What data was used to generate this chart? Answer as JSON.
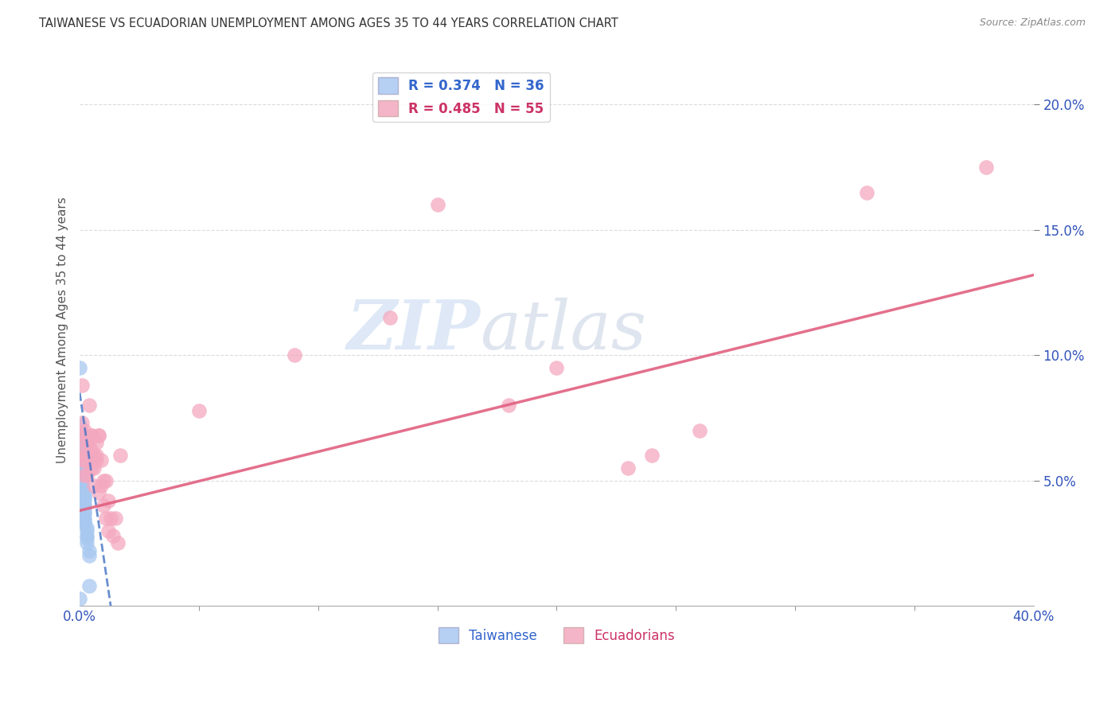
{
  "title": "TAIWANESE VS ECUADORIAN UNEMPLOYMENT AMONG AGES 35 TO 44 YEARS CORRELATION CHART",
  "source": "Source: ZipAtlas.com",
  "ylabel": "Unemployment Among Ages 35 to 44 years",
  "xlim": [
    0,
    0.4
  ],
  "ylim": [
    0,
    0.22
  ],
  "xtick_left_label": "0.0%",
  "xtick_right_label": "40.0%",
  "yticks": [
    0.05,
    0.1,
    0.15,
    0.2
  ],
  "yticklabels": [
    "5.0%",
    "10.0%",
    "15.0%",
    "20.0%"
  ],
  "legend_r_entries": [
    {
      "label_r": "R = 0.374",
      "label_n": "N = 36",
      "color": "#a8c8f0"
    },
    {
      "label_r": "R = 0.485",
      "label_n": "N = 55",
      "color": "#f4a8c0"
    }
  ],
  "taiwanese_color": "#a8c8f0",
  "ecuadorian_color": "#f4a8c0",
  "taiwanese_line_color": "#4472c4",
  "ecuadorian_line_color": "#e06080",
  "watermark_zip": "ZIP",
  "watermark_atlas": "atlas",
  "taiwanese_points": [
    [
      0.0,
      0.095
    ],
    [
      0.0,
      0.072
    ],
    [
      0.0,
      0.068
    ],
    [
      0.001,
      0.065
    ],
    [
      0.001,
      0.063
    ],
    [
      0.001,
      0.06
    ],
    [
      0.001,
      0.058
    ],
    [
      0.001,
      0.057
    ],
    [
      0.001,
      0.055
    ],
    [
      0.001,
      0.053
    ],
    [
      0.001,
      0.052
    ],
    [
      0.001,
      0.05
    ],
    [
      0.001,
      0.05
    ],
    [
      0.001,
      0.048
    ],
    [
      0.001,
      0.047
    ],
    [
      0.001,
      0.046
    ],
    [
      0.002,
      0.045
    ],
    [
      0.002,
      0.044
    ],
    [
      0.002,
      0.043
    ],
    [
      0.002,
      0.042
    ],
    [
      0.002,
      0.04
    ],
    [
      0.002,
      0.04
    ],
    [
      0.002,
      0.038
    ],
    [
      0.002,
      0.037
    ],
    [
      0.002,
      0.035
    ],
    [
      0.002,
      0.034
    ],
    [
      0.002,
      0.033
    ],
    [
      0.003,
      0.031
    ],
    [
      0.003,
      0.03
    ],
    [
      0.003,
      0.028
    ],
    [
      0.003,
      0.027
    ],
    [
      0.003,
      0.025
    ],
    [
      0.004,
      0.022
    ],
    [
      0.004,
      0.02
    ],
    [
      0.004,
      0.008
    ],
    [
      0.0,
      0.003
    ]
  ],
  "ecuadorian_points": [
    [
      0.0,
      0.068
    ],
    [
      0.001,
      0.088
    ],
    [
      0.001,
      0.073
    ],
    [
      0.001,
      0.062
    ],
    [
      0.001,
      0.058
    ],
    [
      0.002,
      0.06
    ],
    [
      0.002,
      0.07
    ],
    [
      0.002,
      0.058
    ],
    [
      0.002,
      0.052
    ],
    [
      0.003,
      0.065
    ],
    [
      0.003,
      0.06
    ],
    [
      0.003,
      0.068
    ],
    [
      0.003,
      0.052
    ],
    [
      0.004,
      0.08
    ],
    [
      0.004,
      0.065
    ],
    [
      0.004,
      0.058
    ],
    [
      0.005,
      0.068
    ],
    [
      0.005,
      0.062
    ],
    [
      0.005,
      0.068
    ],
    [
      0.005,
      0.055
    ],
    [
      0.005,
      0.06
    ],
    [
      0.006,
      0.06
    ],
    [
      0.006,
      0.058
    ],
    [
      0.006,
      0.055
    ],
    [
      0.006,
      0.048
    ],
    [
      0.007,
      0.065
    ],
    [
      0.007,
      0.058
    ],
    [
      0.007,
      0.06
    ],
    [
      0.008,
      0.045
    ],
    [
      0.008,
      0.068
    ],
    [
      0.008,
      0.068
    ],
    [
      0.009,
      0.058
    ],
    [
      0.009,
      0.048
    ],
    [
      0.01,
      0.04
    ],
    [
      0.01,
      0.05
    ],
    [
      0.011,
      0.035
    ],
    [
      0.011,
      0.05
    ],
    [
      0.012,
      0.042
    ],
    [
      0.012,
      0.03
    ],
    [
      0.013,
      0.035
    ],
    [
      0.014,
      0.028
    ],
    [
      0.015,
      0.035
    ],
    [
      0.016,
      0.025
    ],
    [
      0.017,
      0.06
    ],
    [
      0.05,
      0.078
    ],
    [
      0.09,
      0.1
    ],
    [
      0.13,
      0.115
    ],
    [
      0.15,
      0.16
    ],
    [
      0.18,
      0.08
    ],
    [
      0.2,
      0.095
    ],
    [
      0.23,
      0.055
    ],
    [
      0.24,
      0.06
    ],
    [
      0.26,
      0.07
    ],
    [
      0.33,
      0.165
    ],
    [
      0.38,
      0.175
    ]
  ],
  "tw_line_x": [
    0.0,
    0.013
  ],
  "tw_line_y": [
    0.085,
    0.0
  ],
  "ec_line_x": [
    0.0,
    0.4
  ],
  "ec_line_y": [
    0.038,
    0.132
  ]
}
